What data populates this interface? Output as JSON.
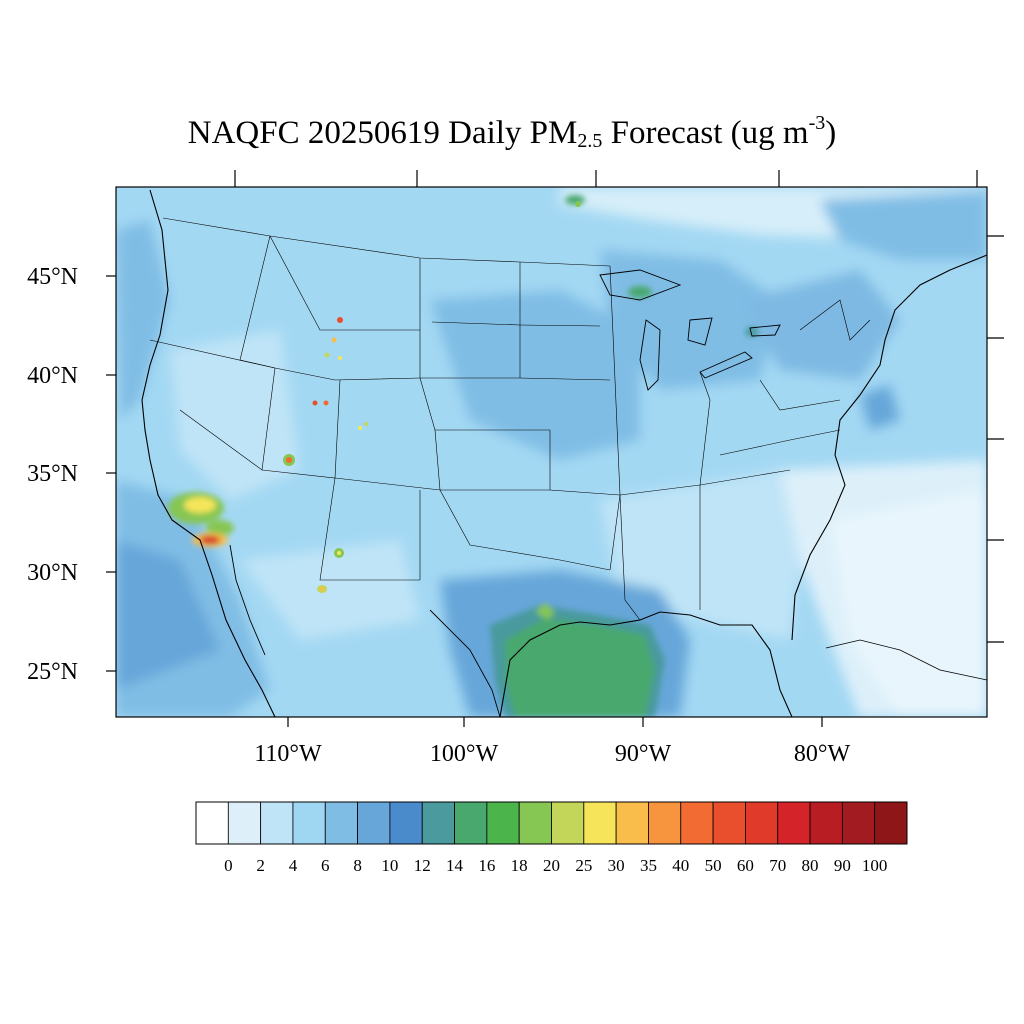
{
  "title": {
    "prefix": "NAQFC 20250619 Daily PM",
    "sub": "2.5",
    "middle": " Forecast (ug m",
    "sup": "-3",
    "suffix": ")"
  },
  "lat_labels": [
    "45°N",
    "40°N",
    "35°N",
    "30°N",
    "25°N"
  ],
  "lon_labels": [
    "110°W",
    "100°W",
    "90°W",
    "80°W"
  ],
  "colorbar": {
    "labels": [
      "0",
      "2",
      "4",
      "6",
      "8",
      "10",
      "12",
      "14",
      "16",
      "18",
      "20",
      "25",
      "30",
      "35",
      "40",
      "50",
      "60",
      "70",
      "80",
      "90",
      "100"
    ],
    "colors": [
      "#ffffff",
      "#ddf0fa",
      "#bfe4f7",
      "#9fd7f3",
      "#80bde5",
      "#66a6d9",
      "#4a8bcb",
      "#4a9a9e",
      "#48a86e",
      "#4bb44b",
      "#86c653",
      "#c3d65a",
      "#f6e55a",
      "#f8bd4b",
      "#f6953d",
      "#f26b32",
      "#e94e2d",
      "#df3a2a",
      "#d42329",
      "#b81d24",
      "#a11b20",
      "#8e1619"
    ]
  }
}
